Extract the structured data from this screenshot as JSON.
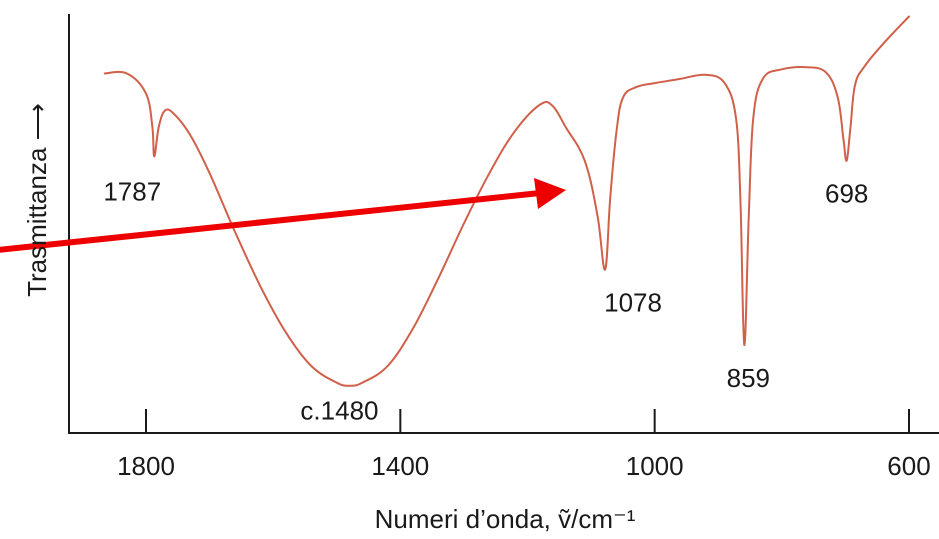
{
  "chart_data": {
    "type": "line",
    "xlabel": "Numeri d’onda, ṽ/cm⁻¹",
    "ylabel": "Trasmittanza ⟶",
    "x_reversed": true,
    "xlim": [
      1920,
      600
    ],
    "ylim": [
      0,
      1
    ],
    "x_ticks": [
      1800,
      1400,
      1000,
      600
    ],
    "y_ticks": [],
    "grid": false,
    "series": [
      {
        "color": "#d0604a",
        "points": [
          [
            1865,
            0.858
          ],
          [
            1830,
            0.858
          ],
          [
            1800,
            0.81
          ],
          [
            1790,
            0.73
          ],
          [
            1787,
            0.66
          ],
          [
            1780,
            0.73
          ],
          [
            1770,
            0.77
          ],
          [
            1755,
            0.76
          ],
          [
            1730,
            0.71
          ],
          [
            1700,
            0.62
          ],
          [
            1660,
            0.48
          ],
          [
            1620,
            0.35
          ],
          [
            1580,
            0.24
          ],
          [
            1540,
            0.16
          ],
          [
            1500,
            0.12
          ],
          [
            1480,
            0.113
          ],
          [
            1460,
            0.12
          ],
          [
            1420,
            0.16
          ],
          [
            1380,
            0.25
          ],
          [
            1340,
            0.37
          ],
          [
            1300,
            0.5
          ],
          [
            1260,
            0.62
          ],
          [
            1220,
            0.72
          ],
          [
            1180,
            0.784
          ],
          [
            1160,
            0.78
          ],
          [
            1140,
            0.73
          ],
          [
            1110,
            0.65
          ],
          [
            1090,
            0.52
          ],
          [
            1078,
            0.39
          ],
          [
            1070,
            0.56
          ],
          [
            1060,
            0.72
          ],
          [
            1050,
            0.8
          ],
          [
            1030,
            0.825
          ],
          [
            1000,
            0.835
          ],
          [
            960,
            0.845
          ],
          [
            920,
            0.855
          ],
          [
            890,
            0.835
          ],
          [
            872,
            0.75
          ],
          [
            865,
            0.55
          ],
          [
            859,
            0.21
          ],
          [
            852,
            0.52
          ],
          [
            845,
            0.75
          ],
          [
            830,
            0.845
          ],
          [
            800,
            0.868
          ],
          [
            760,
            0.873
          ],
          [
            730,
            0.86
          ],
          [
            712,
            0.8
          ],
          [
            703,
            0.7
          ],
          [
            698,
            0.65
          ],
          [
            692,
            0.73
          ],
          [
            685,
            0.83
          ],
          [
            670,
            0.875
          ],
          [
            640,
            0.93
          ],
          [
            600,
            0.994
          ]
        ]
      }
    ],
    "annotations": [
      {
        "label": "1787",
        "x": 1787
      },
      {
        "label": "c.1480",
        "x": 1480
      },
      {
        "label": "1078",
        "x": 1078
      },
      {
        "label": "859",
        "x": 859
      },
      {
        "label": "698",
        "x": 698
      }
    ],
    "arrow": {
      "color": "#ee0000"
    }
  }
}
